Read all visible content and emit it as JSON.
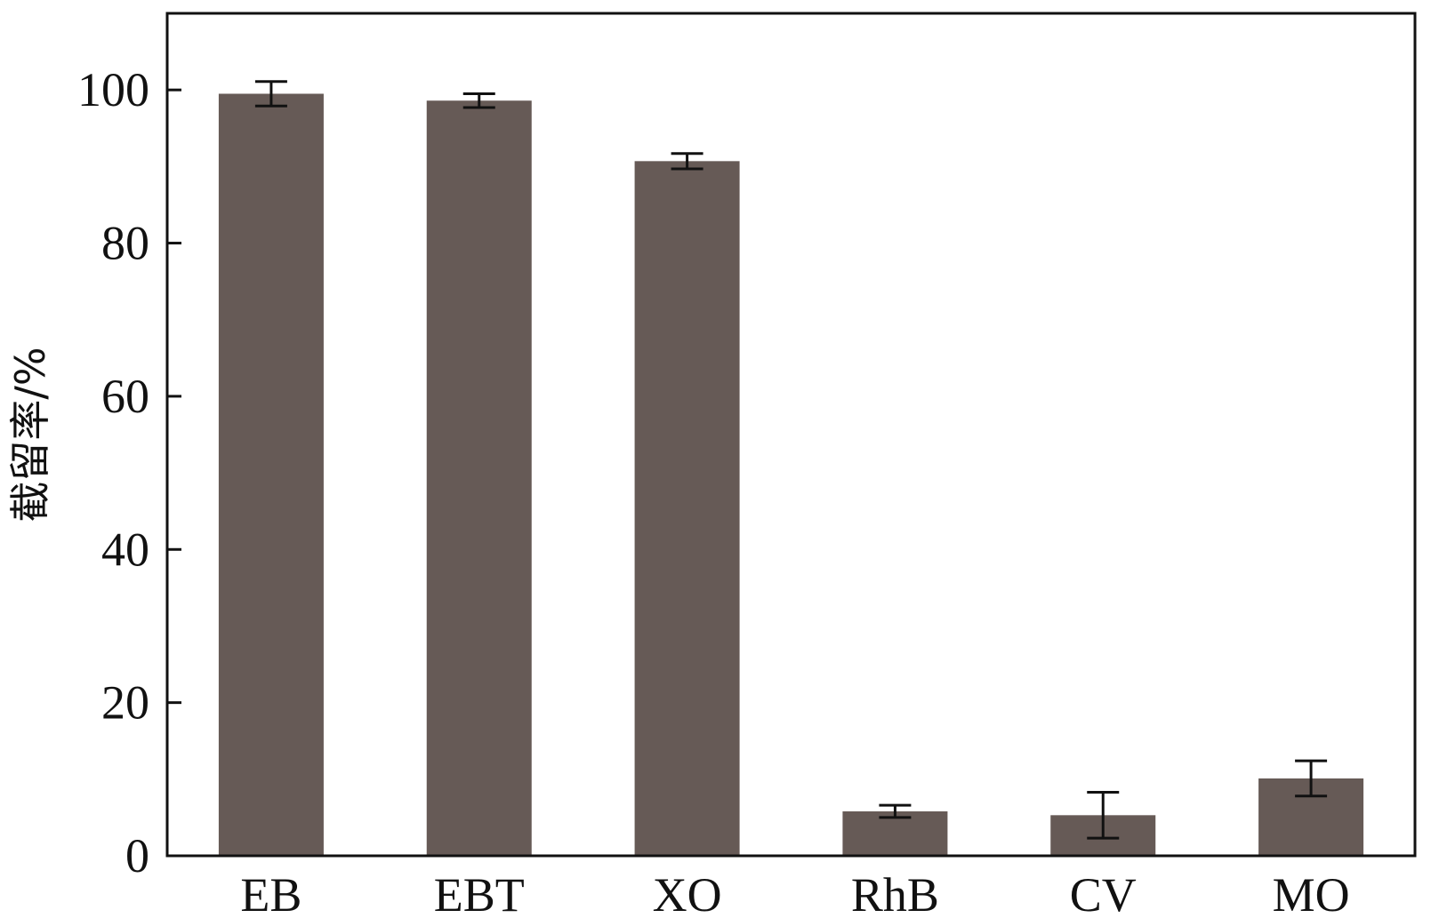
{
  "chart_data": {
    "type": "bar",
    "title": "",
    "xlabel": "",
    "ylabel": "截留率/%",
    "categories": [
      "EB",
      "EBT",
      "XO",
      "RhB",
      "CV",
      "MO"
    ],
    "values": [
      99.5,
      98.6,
      90.7,
      5.8,
      5.3,
      10.1
    ],
    "errors": [
      1.6,
      0.9,
      1.0,
      0.8,
      3.0,
      2.3
    ],
    "ylim": [
      0,
      110
    ],
    "yticks": [
      0,
      20,
      40,
      60,
      80,
      100
    ],
    "ytick_labels": [
      "0",
      "20",
      "40",
      "60",
      "80",
      "100"
    ],
    "grid": false,
    "legend": "none",
    "colors": {
      "bar": "#665a56",
      "error_bar": "#111111",
      "axis": "#111111"
    }
  }
}
